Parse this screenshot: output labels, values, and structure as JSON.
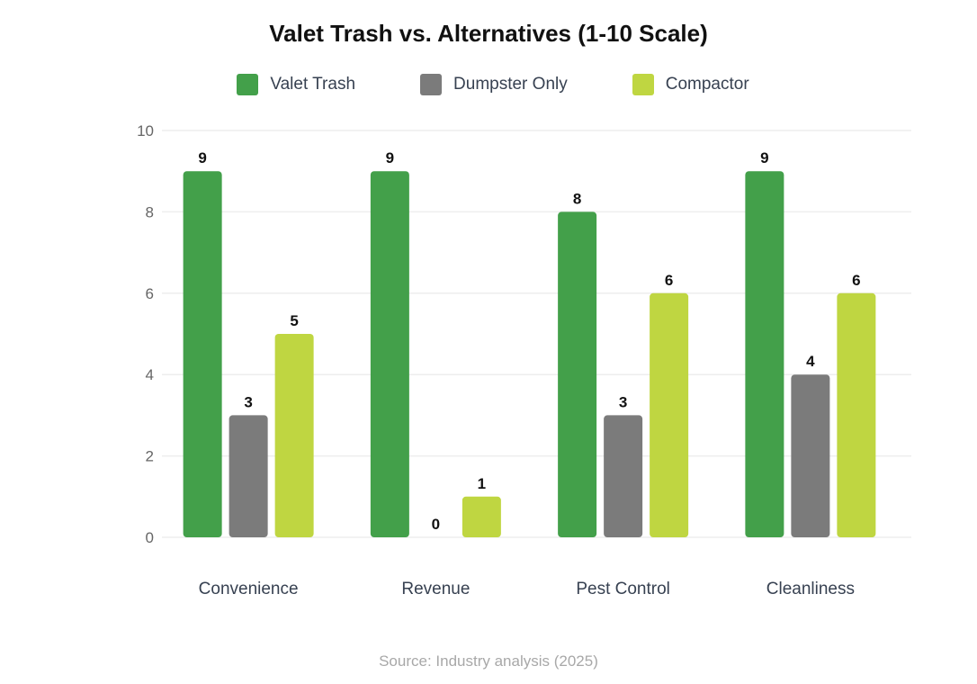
{
  "chart_data": {
    "type": "bar",
    "title": "Valet Trash vs. Alternatives (1-10 Scale)",
    "categories": [
      "Convenience",
      "Revenue",
      "Pest Control",
      "Cleanliness"
    ],
    "series": [
      {
        "name": "Valet Trash",
        "color": "#43A04A",
        "values": [
          9,
          9,
          8,
          9
        ]
      },
      {
        "name": "Dumpster Only",
        "color": "#7B7B7B",
        "values": [
          3,
          0,
          3,
          4
        ]
      },
      {
        "name": "Compactor",
        "color": "#BFD641",
        "values": [
          5,
          1,
          6,
          6
        ]
      }
    ],
    "ylim": [
      0,
      10
    ],
    "yticks": [
      "0",
      "2",
      "4",
      "6",
      "8",
      "10"
    ],
    "xlabel": "",
    "ylabel": "",
    "grid": true,
    "legend": "top",
    "source": "Source: Industry analysis (2025)"
  }
}
